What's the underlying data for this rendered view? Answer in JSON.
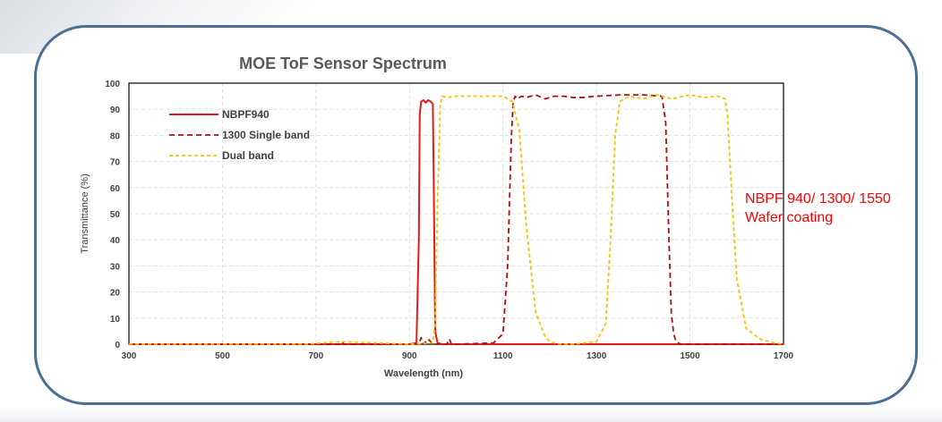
{
  "chart_data": {
    "type": "line",
    "title": "MOE ToF Sensor Spectrum",
    "xlabel": "Wavelength (nm)",
    "ylabel": "Transmittance (%)",
    "xlim": [
      300,
      1700
    ],
    "ylim": [
      0,
      100
    ],
    "xticks": [
      300,
      500,
      700,
      900,
      1100,
      1300,
      1500,
      1700
    ],
    "yticks": [
      0,
      10,
      20,
      30,
      40,
      50,
      60,
      70,
      80,
      90,
      100
    ],
    "grid": true,
    "legend_position": "top-left",
    "series": [
      {
        "name": "NBPF940",
        "color": "#e31a1c",
        "style": "solid",
        "x": [
          300,
          900,
          915,
          920,
          922,
          925,
          930,
          935,
          940,
          945,
          950,
          952,
          955,
          960,
          970,
          1700
        ],
        "y": [
          0,
          0,
          0.5,
          40,
          88,
          93,
          93.5,
          92.5,
          93.5,
          93,
          92,
          60,
          5,
          0.5,
          0,
          0
        ]
      },
      {
        "name": "1300 Single band",
        "color": "#b01010",
        "style": "dashed",
        "x": [
          300,
          750,
          755,
          760,
          900,
          920,
          925,
          930,
          940,
          950,
          980,
          985,
          990,
          1000,
          1080,
          1100,
          1110,
          1118,
          1122,
          1126,
          1130,
          1140,
          1150,
          1170,
          1190,
          1210,
          1230,
          1250,
          1270,
          1300,
          1350,
          1400,
          1440,
          1448,
          1455,
          1460,
          1465,
          1470,
          1480,
          1500,
          1550,
          1700
        ],
        "y": [
          0,
          0,
          1,
          0,
          0,
          0,
          2.5,
          0,
          2,
          0,
          0,
          2,
          0,
          0,
          0.5,
          4,
          30,
          80,
          93,
          95,
          94,
          95,
          94.5,
          95.5,
          94,
          95,
          95,
          94.5,
          94.5,
          95,
          95.5,
          95.5,
          95,
          85,
          40,
          12,
          4,
          1,
          0,
          0,
          0,
          0
        ]
      },
      {
        "name": "Dual band",
        "color": "#ffc000",
        "style": "dashed",
        "x": [
          300,
          680,
          750,
          900,
          950,
          955,
          960,
          966,
          970,
          980,
          1000,
          1050,
          1100,
          1110,
          1120,
          1135,
          1150,
          1170,
          1190,
          1200,
          1220,
          1250,
          1300,
          1320,
          1330,
          1340,
          1350,
          1370,
          1400,
          1430,
          1460,
          1500,
          1530,
          1560,
          1575,
          1580,
          1590,
          1600,
          1620,
          1650,
          1680,
          1700
        ],
        "y": [
          0,
          0,
          1,
          0,
          0.5,
          8,
          55,
          92,
          95,
          94.5,
          95,
          95,
          95,
          94,
          93,
          82,
          45,
          12,
          3,
          1,
          0,
          0,
          1,
          8,
          40,
          80,
          93,
          95,
          94,
          95.5,
          94,
          95.5,
          94.5,
          95,
          94,
          88,
          55,
          25,
          6,
          2,
          0.5,
          0
        ]
      }
    ]
  },
  "side_note": {
    "line1": "NBPF 940/ 1300/ 1550",
    "line2": "Wafer coating"
  }
}
